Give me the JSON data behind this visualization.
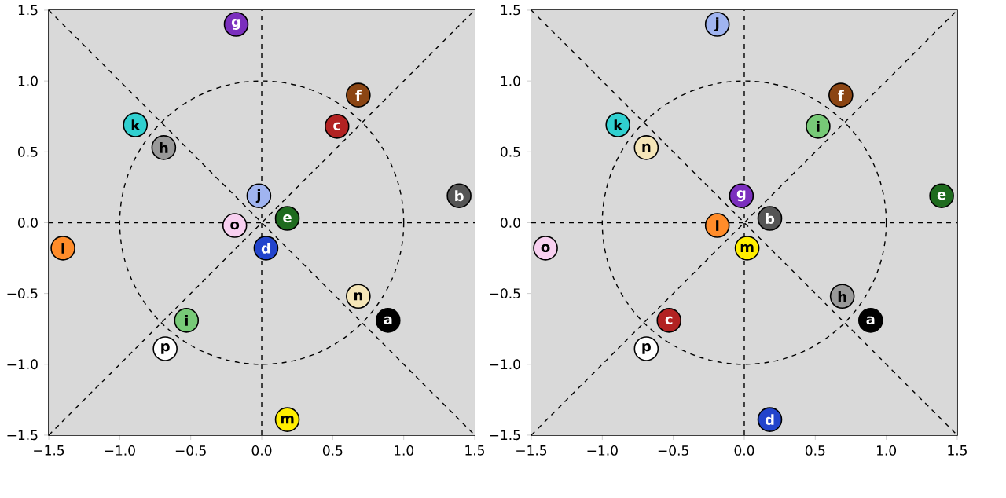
{
  "chart_data": [
    {
      "type": "scatter",
      "marker": "circle",
      "xlim": [
        -1.5,
        1.5
      ],
      "ylim": [
        -1.5,
        1.5
      ],
      "xticks": [
        {
          "value": -1.5,
          "label": "−1.5"
        },
        {
          "value": -1.0,
          "label": "−1.0"
        },
        {
          "value": -0.5,
          "label": "−0.5"
        },
        {
          "value": 0.0,
          "label": "0.0"
        },
        {
          "value": 0.5,
          "label": "0.5"
        },
        {
          "value": 1.0,
          "label": "1.0"
        },
        {
          "value": 1.5,
          "label": "1.5"
        }
      ],
      "yticks": [
        {
          "value": -1.5,
          "label": "−1.5"
        },
        {
          "value": -1.0,
          "label": "−1.0"
        },
        {
          "value": -0.5,
          "label": "−0.5"
        },
        {
          "value": 0.0,
          "label": "0.0"
        },
        {
          "value": 0.5,
          "label": "0.5"
        },
        {
          "value": 1.0,
          "label": "1.0"
        },
        {
          "value": 1.5,
          "label": "1.5"
        }
      ],
      "series": [
        {
          "type": "line",
          "color": "#000000",
          "line_style": "dashed",
          "marker": "none",
          "x": [
            -1.5,
            1.5
          ],
          "values": [
            -1.5,
            1.5
          ]
        },
        {
          "type": "line",
          "color": "#000000",
          "line_style": "dashed",
          "marker": "none",
          "x": [
            -1.5,
            1.5
          ],
          "values": [
            1.5,
            -1.5
          ]
        },
        {
          "type": "line",
          "color": "#000000",
          "line_style": "dashed",
          "marker": "none",
          "x": [
            0,
            0
          ],
          "values": [
            -1.5,
            1.5
          ]
        },
        {
          "type": "line",
          "color": "#000000",
          "line_style": "dashed",
          "marker": "none",
          "x": [
            -1.5,
            1.5
          ],
          "values": [
            0,
            0
          ]
        },
        {
          "name": "a",
          "color": "#000000",
          "x": [
            0.89
          ],
          "values": [
            -0.69
          ]
        },
        {
          "name": "b",
          "color": "#555555",
          "x": [
            1.39
          ],
          "values": [
            0.19
          ]
        },
        {
          "name": "c",
          "color": "#b22222",
          "x": [
            0.53
          ],
          "values": [
            0.68
          ]
        },
        {
          "name": "d",
          "color": "#2244cc",
          "x": [
            0.03
          ],
          "values": [
            -0.18
          ]
        },
        {
          "name": "e",
          "color": "#1e6b1e",
          "x": [
            0.18
          ],
          "values": [
            0.03
          ]
        },
        {
          "name": "f",
          "color": "#8b4513",
          "x": [
            0.68
          ],
          "values": [
            0.9
          ]
        },
        {
          "name": "g",
          "color": "#7b2fbe",
          "x": [
            -0.18
          ],
          "values": [
            1.4
          ]
        },
        {
          "name": "h",
          "color": "#999999",
          "x": [
            -0.69
          ],
          "values": [
            0.53
          ]
        },
        {
          "name": "i",
          "color": "#77c977",
          "x": [
            -0.53
          ],
          "values": [
            -0.69
          ]
        },
        {
          "name": "j",
          "color": "#a0b4f0",
          "x": [
            -0.02
          ],
          "values": [
            0.19
          ]
        },
        {
          "name": "k",
          "color": "#30d0d0",
          "x": [
            -0.89
          ],
          "values": [
            0.69
          ]
        },
        {
          "name": "l",
          "color": "#ff8c2a",
          "x": [
            -1.4
          ],
          "values": [
            -0.18
          ]
        },
        {
          "name": "m",
          "color": "#ffee00",
          "x": [
            0.18
          ],
          "values": [
            -1.39
          ]
        },
        {
          "name": "n",
          "color": "#f5e6b8",
          "x": [
            0.68
          ],
          "values": [
            -0.52
          ]
        },
        {
          "name": "o",
          "color": "#f8d0f0",
          "x": [
            -0.19
          ],
          "values": [
            -0.02
          ]
        },
        {
          "name": "p",
          "color": "#ffffff",
          "x": [
            -0.68
          ],
          "values": [
            -0.89
          ]
        }
      ]
    },
    {
      "type": "scatter",
      "marker": "circle",
      "xlim": [
        -1.5,
        1.5
      ],
      "ylim": [
        -1.5,
        1.5
      ],
      "xticks": [
        {
          "value": -1.5,
          "label": "−1.5"
        },
        {
          "value": -1.0,
          "label": "−1.0"
        },
        {
          "value": -0.5,
          "label": "−0.5"
        },
        {
          "value": 0.0,
          "label": "0.0"
        },
        {
          "value": 0.5,
          "label": "0.5"
        },
        {
          "value": 1.0,
          "label": "1.0"
        },
        {
          "value": 1.5,
          "label": "1.5"
        }
      ],
      "yticks": [
        {
          "value": -1.5,
          "label": "−1.5"
        },
        {
          "value": -1.0,
          "label": "−1.0"
        },
        {
          "value": -0.5,
          "label": "−0.5"
        },
        {
          "value": 0.0,
          "label": "0.0"
        },
        {
          "value": 0.5,
          "label": "0.5"
        },
        {
          "value": 1.0,
          "label": "1.0"
        },
        {
          "value": 1.5,
          "label": "1.5"
        }
      ],
      "series": [
        {
          "type": "line",
          "color": "#000000",
          "line_style": "dashed",
          "marker": "none",
          "x": [
            -1.5,
            1.5
          ],
          "values": [
            -1.5,
            1.5
          ]
        },
        {
          "type": "line",
          "color": "#000000",
          "line_style": "dashed",
          "marker": "none",
          "x": [
            -1.5,
            1.5
          ],
          "values": [
            1.5,
            -1.5
          ]
        },
        {
          "type": "line",
          "color": "#000000",
          "line_style": "dashed",
          "marker": "none",
          "x": [
            0,
            0
          ],
          "values": [
            -1.5,
            1.5
          ]
        },
        {
          "type": "line",
          "color": "#000000",
          "line_style": "dashed",
          "marker": "none",
          "x": [
            -1.5,
            1.5
          ],
          "values": [
            0,
            0
          ]
        },
        {
          "name": "a",
          "color": "#000000",
          "x": [
            0.89
          ],
          "values": [
            -0.69
          ]
        },
        {
          "name": "b",
          "color": "#555555",
          "x": [
            0.18
          ],
          "values": [
            0.03
          ]
        },
        {
          "name": "c",
          "color": "#b22222",
          "x": [
            -0.53
          ],
          "values": [
            -0.69
          ]
        },
        {
          "name": "d",
          "color": "#2244cc",
          "x": [
            0.18
          ],
          "values": [
            -1.39
          ]
        },
        {
          "name": "e",
          "color": "#1e6b1e",
          "x": [
            1.39
          ],
          "values": [
            0.19
          ]
        },
        {
          "name": "f",
          "color": "#8b4513",
          "x": [
            0.68
          ],
          "values": [
            0.9
          ]
        },
        {
          "name": "g",
          "color": "#7b2fbe",
          "x": [
            -0.02
          ],
          "values": [
            0.19
          ]
        },
        {
          "name": "h",
          "color": "#999999",
          "x": [
            0.69
          ],
          "values": [
            -0.52
          ]
        },
        {
          "name": "i",
          "color": "#77c977",
          "x": [
            0.52
          ],
          "values": [
            0.68
          ]
        },
        {
          "name": "j",
          "color": "#a0b4f0",
          "x": [
            -0.19
          ],
          "values": [
            1.4
          ]
        },
        {
          "name": "k",
          "color": "#30d0d0",
          "x": [
            -0.89
          ],
          "values": [
            0.69
          ]
        },
        {
          "name": "l",
          "color": "#ff8c2a",
          "x": [
            -0.19
          ],
          "values": [
            -0.02
          ]
        },
        {
          "name": "m",
          "color": "#ffee00",
          "x": [
            0.02
          ],
          "values": [
            -0.18
          ]
        },
        {
          "name": "n",
          "color": "#f5e6b8",
          "x": [
            -0.69
          ],
          "values": [
            0.53
          ]
        },
        {
          "name": "o",
          "color": "#f8d0f0",
          "x": [
            -1.4
          ],
          "values": [
            -0.18
          ]
        },
        {
          "name": "p",
          "color": "#ffffff",
          "x": [
            -0.69
          ],
          "values": [
            -0.89
          ]
        }
      ]
    }
  ]
}
